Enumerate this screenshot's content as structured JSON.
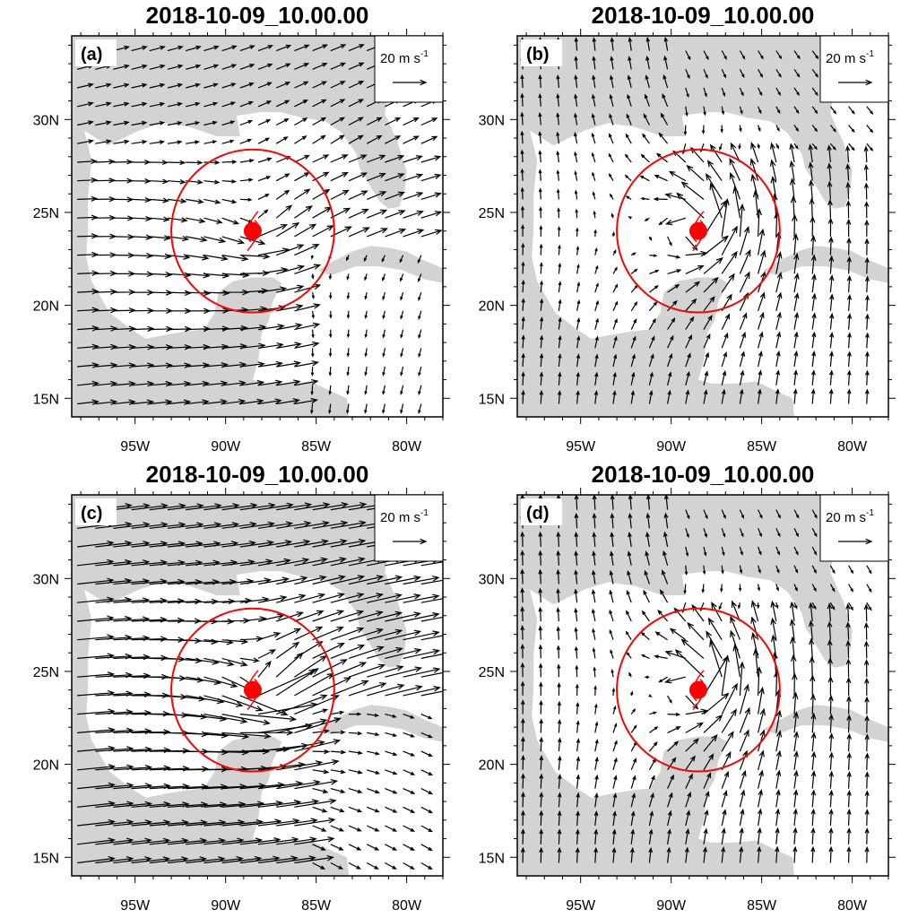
{
  "panels": [
    {
      "title": "2018-10-09_10.00.00",
      "label": "(a)",
      "pattern": "a"
    },
    {
      "title": "2018-10-09_10.00.00",
      "label": "(b)",
      "pattern": "b"
    },
    {
      "title": "2018-10-09_10.00.00",
      "label": "(c)",
      "pattern": "c"
    },
    {
      "title": "2018-10-09_10.00.00",
      "label": "(d)",
      "pattern": "d"
    }
  ],
  "reference_vector": {
    "label": "20 m s",
    "superscript": "-1",
    "magnitude_ms": 20
  },
  "axes": {
    "lon_range": [
      -98.5,
      -78
    ],
    "lat_range": [
      14,
      34.5
    ],
    "lon_ticks": [
      {
        "value": -95,
        "label": "95W"
      },
      {
        "value": -90,
        "label": "90W"
      },
      {
        "value": -85,
        "label": "85W"
      },
      {
        "value": -80,
        "label": "80W"
      }
    ],
    "lat_ticks": [
      {
        "value": 30,
        "label": "30N"
      },
      {
        "value": 25,
        "label": "25N"
      },
      {
        "value": 20,
        "label": "20N"
      },
      {
        "value": 15,
        "label": "15N"
      }
    ]
  },
  "storm": {
    "center_lon": -88.5,
    "center_lat": 24.0,
    "ring_radius_deg": 4.5
  },
  "colors": {
    "land": "#d3d3d3",
    "ocean": "#ffffff",
    "vector": "#000000",
    "storm": "#ff0000",
    "frame": "#000000"
  }
}
